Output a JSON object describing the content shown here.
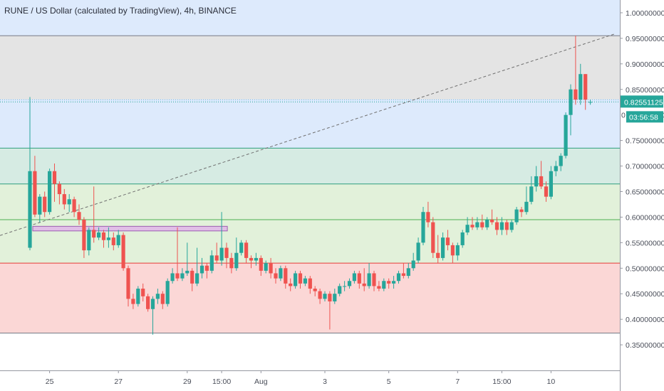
{
  "header": {
    "title": "RUNE / US Dollar (calculated by TradingView), 4h, BINANCE"
  },
  "price_badge": {
    "value": "0.82551125",
    "countdown": "03:56:58",
    "partial": "0"
  },
  "colors": {
    "up": "#26a69a",
    "down": "#ef5350",
    "zone_blue": "#ddeafc",
    "zone_gray": "#e4e4e4",
    "zone_teal": "#d6ebe3",
    "zone_green": "#e2f1da",
    "zone_red": "#fbd7d6",
    "level_teal": "#2f9e7e",
    "level_green": "#4caf50",
    "level_red": "#e53935",
    "level_gray": "#787b86",
    "badge": "#26a69a"
  },
  "chart_data": {
    "type": "candlestick",
    "title": "RUNE / US Dollar (calculated by TradingView), 4h, BINANCE",
    "y_axis": {
      "range": [
        0.3,
        1.025
      ],
      "ticks": [
        "1.00000000",
        "0.95000000",
        "0.90000000",
        "0.85000000",
        "0.80000000",
        "0.75000000",
        "0.70000000",
        "0.65000000",
        "0.60000000",
        "0.55000000",
        "0.50000000",
        "0.45000000",
        "0.40000000",
        "0.35000000"
      ],
      "tick_values": [
        1.0,
        0.95,
        0.9,
        0.85,
        0.8,
        0.75,
        0.7,
        0.65,
        0.6,
        0.55,
        0.5,
        0.45,
        0.4,
        0.35
      ]
    },
    "x_axis": {
      "labels": [
        "25",
        "27",
        "29",
        "15:00",
        "Aug",
        "3",
        "5",
        "7",
        "15:00",
        "10"
      ],
      "label_bar_index": [
        4,
        18,
        32,
        39,
        47,
        60,
        73,
        87,
        96,
        106
      ]
    },
    "zones": [
      {
        "from": 0.955,
        "to": 1.025,
        "color_key": "zone_blue"
      },
      {
        "from": 0.83,
        "to": 0.955,
        "color_key": "zone_gray"
      },
      {
        "from": 0.735,
        "to": 0.83,
        "color_key": "zone_blue"
      },
      {
        "from": 0.665,
        "to": 0.735,
        "color_key": "zone_teal"
      },
      {
        "from": 0.51,
        "to": 0.665,
        "color_key": "zone_green"
      },
      {
        "from": 0.373,
        "to": 0.51,
        "color_key": "zone_red"
      }
    ],
    "levels": [
      {
        "price": 0.955,
        "color_key": "level_gray"
      },
      {
        "price": 0.735,
        "color_key": "level_teal"
      },
      {
        "price": 0.665,
        "color_key": "level_teal"
      },
      {
        "price": 0.595,
        "color_key": "level_green"
      },
      {
        "price": 0.51,
        "color_key": "level_red"
      },
      {
        "price": 0.373,
        "color_key": "level_gray"
      }
    ],
    "current_price_line": 0.8255,
    "trendline": {
      "from": [
        0,
        0.578
      ],
      "to": [
        113,
        0.958
      ]
    },
    "rectangle": {
      "bar_from": 0,
      "bar_to": 39,
      "price_top": 0.582,
      "price_bottom": 0.573
    },
    "candles": [
      [
        0.54,
        0.69,
        0.835,
        0.535
      ],
      [
        0.69,
        0.605,
        0.72,
        0.6
      ],
      [
        0.605,
        0.64,
        0.645,
        0.59
      ],
      [
        0.64,
        0.61,
        0.65,
        0.6
      ],
      [
        0.61,
        0.69,
        0.695,
        0.605
      ],
      [
        0.69,
        0.665,
        0.705,
        0.63
      ],
      [
        0.665,
        0.645,
        0.67,
        0.625
      ],
      [
        0.645,
        0.625,
        0.655,
        0.615
      ],
      [
        0.625,
        0.635,
        0.645,
        0.61
      ],
      [
        0.635,
        0.61,
        0.64,
        0.6
      ],
      [
        0.61,
        0.595,
        0.625,
        0.585
      ],
      [
        0.595,
        0.535,
        0.6,
        0.52
      ],
      [
        0.535,
        0.575,
        0.58,
        0.525
      ],
      [
        0.575,
        0.56,
        0.66,
        0.55
      ],
      [
        0.56,
        0.57,
        0.58,
        0.555
      ],
      [
        0.57,
        0.555,
        0.575,
        0.54
      ],
      [
        0.555,
        0.56,
        0.58,
        0.54
      ],
      [
        0.56,
        0.545,
        0.57,
        0.535
      ],
      [
        0.545,
        0.565,
        0.575,
        0.54
      ],
      [
        0.565,
        0.5,
        0.57,
        0.495
      ],
      [
        0.5,
        0.44,
        0.505,
        0.425
      ],
      [
        0.44,
        0.43,
        0.45,
        0.42
      ],
      [
        0.43,
        0.46,
        0.465,
        0.425
      ],
      [
        0.46,
        0.445,
        0.47,
        0.435
      ],
      [
        0.445,
        0.42,
        0.45,
        0.415
      ],
      [
        0.42,
        0.44,
        0.445,
        0.37
      ],
      [
        0.44,
        0.45,
        0.46,
        0.43
      ],
      [
        0.45,
        0.43,
        0.455,
        0.42
      ],
      [
        0.43,
        0.475,
        0.48,
        0.425
      ],
      [
        0.475,
        0.49,
        0.5,
        0.47
      ],
      [
        0.49,
        0.48,
        0.58,
        0.475
      ],
      [
        0.48,
        0.49,
        0.5,
        0.475
      ],
      [
        0.49,
        0.495,
        0.55,
        0.485
      ],
      [
        0.495,
        0.47,
        0.5,
        0.455
      ],
      [
        0.47,
        0.49,
        0.54,
        0.465
      ],
      [
        0.49,
        0.505,
        0.52,
        0.48
      ],
      [
        0.505,
        0.495,
        0.51,
        0.48
      ],
      [
        0.495,
        0.525,
        0.535,
        0.49
      ],
      [
        0.525,
        0.515,
        0.55,
        0.51
      ],
      [
        0.515,
        0.54,
        0.61,
        0.505
      ],
      [
        0.54,
        0.52,
        0.55,
        0.5
      ],
      [
        0.52,
        0.5,
        0.53,
        0.49
      ],
      [
        0.5,
        0.53,
        0.56,
        0.495
      ],
      [
        0.53,
        0.55,
        0.555,
        0.525
      ],
      [
        0.55,
        0.52,
        0.555,
        0.51
      ],
      [
        0.52,
        0.515,
        0.525,
        0.5
      ],
      [
        0.515,
        0.52,
        0.53,
        0.505
      ],
      [
        0.52,
        0.495,
        0.525,
        0.485
      ],
      [
        0.495,
        0.51,
        0.515,
        0.49
      ],
      [
        0.51,
        0.49,
        0.52,
        0.48
      ],
      [
        0.49,
        0.48,
        0.5,
        0.47
      ],
      [
        0.48,
        0.5,
        0.505,
        0.475
      ],
      [
        0.5,
        0.47,
        0.505,
        0.46
      ],
      [
        0.47,
        0.465,
        0.48,
        0.455
      ],
      [
        0.465,
        0.49,
        0.495,
        0.46
      ],
      [
        0.49,
        0.47,
        0.495,
        0.46
      ],
      [
        0.47,
        0.48,
        0.485,
        0.465
      ],
      [
        0.48,
        0.46,
        0.485,
        0.45
      ],
      [
        0.46,
        0.455,
        0.465,
        0.445
      ],
      [
        0.455,
        0.44,
        0.46,
        0.43
      ],
      [
        0.44,
        0.45,
        0.455,
        0.435
      ],
      [
        0.45,
        0.435,
        0.455,
        0.38
      ],
      [
        0.435,
        0.45,
        0.46,
        0.43
      ],
      [
        0.45,
        0.465,
        0.47,
        0.445
      ],
      [
        0.465,
        0.465,
        0.475,
        0.455
      ],
      [
        0.465,
        0.475,
        0.48,
        0.46
      ],
      [
        0.475,
        0.49,
        0.495,
        0.47
      ],
      [
        0.49,
        0.47,
        0.495,
        0.46
      ],
      [
        0.47,
        0.465,
        0.5,
        0.455
      ],
      [
        0.465,
        0.49,
        0.51,
        0.46
      ],
      [
        0.49,
        0.465,
        0.495,
        0.455
      ],
      [
        0.465,
        0.46,
        0.475,
        0.455
      ],
      [
        0.46,
        0.475,
        0.48,
        0.455
      ],
      [
        0.475,
        0.47,
        0.48,
        0.46
      ],
      [
        0.47,
        0.475,
        0.485,
        0.46
      ],
      [
        0.475,
        0.49,
        0.495,
        0.47
      ],
      [
        0.49,
        0.485,
        0.51,
        0.48
      ],
      [
        0.485,
        0.5,
        0.51,
        0.48
      ],
      [
        0.5,
        0.515,
        0.53,
        0.495
      ],
      [
        0.515,
        0.55,
        0.56,
        0.51
      ],
      [
        0.55,
        0.61,
        0.62,
        0.545
      ],
      [
        0.61,
        0.59,
        0.63,
        0.58
      ],
      [
        0.59,
        0.53,
        0.6,
        0.52
      ],
      [
        0.53,
        0.52,
        0.565,
        0.51
      ],
      [
        0.52,
        0.56,
        0.57,
        0.515
      ],
      [
        0.56,
        0.545,
        0.575,
        0.535
      ],
      [
        0.545,
        0.525,
        0.55,
        0.51
      ],
      [
        0.525,
        0.545,
        0.55,
        0.515
      ],
      [
        0.545,
        0.57,
        0.575,
        0.54
      ],
      [
        0.57,
        0.585,
        0.6,
        0.565
      ],
      [
        0.585,
        0.58,
        0.6,
        0.575
      ],
      [
        0.58,
        0.59,
        0.6,
        0.575
      ],
      [
        0.59,
        0.58,
        0.605,
        0.575
      ],
      [
        0.58,
        0.595,
        0.6,
        0.575
      ],
      [
        0.595,
        0.59,
        0.615,
        0.585
      ],
      [
        0.59,
        0.575,
        0.6,
        0.565
      ],
      [
        0.575,
        0.59,
        0.6,
        0.565
      ],
      [
        0.59,
        0.575,
        0.595,
        0.565
      ],
      [
        0.575,
        0.59,
        0.595,
        0.57
      ],
      [
        0.59,
        0.615,
        0.62,
        0.585
      ],
      [
        0.615,
        0.61,
        0.62,
        0.6
      ],
      [
        0.61,
        0.63,
        0.66,
        0.605
      ],
      [
        0.63,
        0.66,
        0.68,
        0.625
      ],
      [
        0.66,
        0.68,
        0.7,
        0.65
      ],
      [
        0.68,
        0.66,
        0.71,
        0.655
      ],
      [
        0.66,
        0.64,
        0.67,
        0.63
      ],
      [
        0.64,
        0.69,
        0.7,
        0.635
      ],
      [
        0.69,
        0.7,
        0.71,
        0.68
      ],
      [
        0.7,
        0.72,
        0.725,
        0.69
      ],
      [
        0.72,
        0.8,
        0.805,
        0.715
      ],
      [
        0.8,
        0.85,
        0.86,
        0.76
      ],
      [
        0.85,
        0.83,
        0.955,
        0.82
      ],
      [
        0.83,
        0.88,
        0.9,
        0.82
      ],
      [
        0.88,
        0.83,
        0.88,
        0.81
      ],
      [
        0.8255,
        0.8255,
        0.83,
        0.82
      ]
    ]
  }
}
